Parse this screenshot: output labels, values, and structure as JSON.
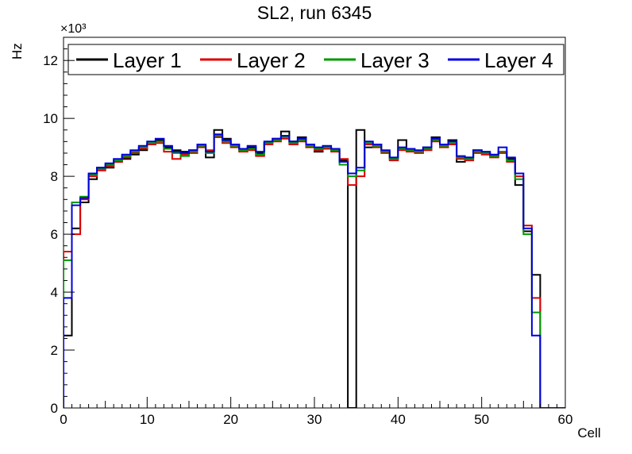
{
  "title": "SL2, run 6345",
  "axes": {
    "x_label": "Cell",
    "y_label": "Hz",
    "y_multiplier": "×10³"
  },
  "legend": {
    "entries": [
      {
        "label": "Layer 1",
        "color": "#000000"
      },
      {
        "label": "Layer 2",
        "color": "#dd0000"
      },
      {
        "label": "Layer 3",
        "color": "#009900"
      },
      {
        "label": "Layer 4",
        "color": "#0000dd"
      }
    ]
  },
  "chart_data": {
    "type": "line",
    "subtype": "step-histogram",
    "title": "SL2, run 6345",
    "xlabel": "Cell",
    "ylabel": "Hz",
    "xlim": [
      0,
      60
    ],
    "ylim": [
      0,
      12.8
    ],
    "x_ticks": [
      0,
      10,
      20,
      30,
      40,
      50,
      60
    ],
    "y_ticks": [
      0,
      2,
      4,
      6,
      8,
      10,
      12
    ],
    "y_value_unit": "×10³ Hz",
    "bin_width": 1,
    "grid": false,
    "legend_position": "top-inside-horizontal",
    "series": [
      {
        "name": "Layer 1",
        "color": "#000000",
        "values": [
          2.5,
          6.2,
          7.1,
          7.9,
          8.3,
          8.3,
          8.5,
          8.6,
          8.75,
          8.9,
          9.1,
          9.25,
          9.0,
          8.9,
          8.85,
          8.9,
          9.05,
          8.65,
          9.6,
          9.3,
          9.1,
          8.95,
          9.0,
          8.8,
          9.15,
          9.3,
          9.55,
          9.2,
          9.35,
          9.1,
          8.85,
          9.0,
          8.9,
          8.55,
          0.0,
          9.6,
          9.0,
          9.1,
          8.85,
          8.6,
          9.25,
          8.9,
          8.85,
          9.0,
          9.35,
          9.1,
          9.25,
          8.5,
          8.65,
          8.9,
          8.8,
          8.7,
          8.85,
          8.6,
          7.7,
          6.1,
          4.6,
          0,
          0,
          0
        ]
      },
      {
        "name": "Layer 2",
        "color": "#dd0000",
        "values": [
          5.4,
          6.0,
          7.2,
          8.0,
          8.2,
          8.35,
          8.5,
          8.65,
          8.8,
          8.95,
          9.1,
          9.15,
          8.85,
          8.6,
          8.75,
          8.8,
          9.0,
          8.9,
          9.35,
          9.15,
          9.0,
          8.85,
          8.9,
          8.7,
          9.1,
          9.2,
          9.3,
          9.1,
          9.2,
          9.0,
          8.9,
          8.95,
          8.85,
          8.6,
          7.7,
          8.0,
          9.1,
          9.0,
          8.8,
          8.55,
          8.9,
          8.85,
          8.8,
          8.9,
          9.2,
          9.0,
          9.1,
          8.6,
          8.55,
          8.8,
          8.75,
          8.65,
          8.8,
          8.5,
          8.0,
          6.3,
          3.8,
          0,
          0,
          0
        ]
      },
      {
        "name": "Layer 3",
        "color": "#009900",
        "values": [
          5.1,
          7.1,
          7.3,
          8.05,
          8.25,
          8.4,
          8.55,
          8.7,
          8.85,
          9.0,
          9.15,
          9.2,
          8.95,
          8.8,
          8.7,
          8.85,
          9.05,
          8.8,
          9.4,
          9.2,
          9.05,
          8.9,
          8.95,
          8.75,
          9.15,
          9.25,
          9.35,
          9.15,
          9.25,
          9.05,
          8.95,
          9.0,
          8.9,
          8.4,
          8.0,
          8.2,
          9.15,
          9.05,
          8.85,
          8.6,
          8.95,
          8.9,
          8.85,
          8.95,
          9.25,
          9.05,
          9.15,
          8.65,
          8.6,
          8.85,
          8.8,
          8.7,
          8.85,
          8.55,
          7.9,
          6.0,
          3.3,
          0,
          0,
          0
        ]
      },
      {
        "name": "Layer 4",
        "color": "#0000dd",
        "values": [
          3.8,
          7.0,
          7.25,
          8.1,
          8.3,
          8.45,
          8.6,
          8.75,
          8.9,
          9.05,
          9.2,
          9.3,
          9.05,
          8.85,
          8.8,
          8.9,
          9.1,
          8.85,
          9.45,
          9.25,
          9.1,
          8.95,
          9.05,
          8.85,
          9.2,
          9.3,
          9.4,
          9.2,
          9.3,
          9.1,
          9.0,
          9.05,
          8.95,
          8.5,
          8.1,
          8.3,
          9.2,
          9.1,
          8.9,
          8.65,
          9.0,
          8.95,
          8.9,
          9.0,
          9.3,
          9.1,
          9.2,
          8.7,
          8.65,
          8.9,
          8.85,
          8.75,
          9.0,
          8.65,
          8.1,
          6.2,
          2.5,
          0,
          0,
          0
        ]
      }
    ]
  }
}
